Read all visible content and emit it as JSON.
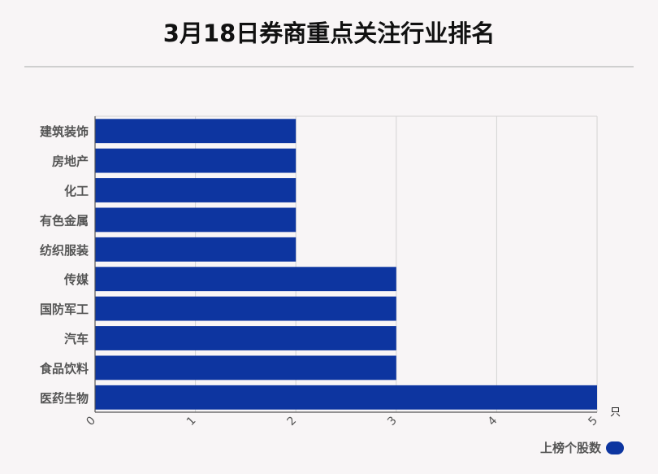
{
  "title": "3月18日券商重点关注行业排名",
  "colors": {
    "bar": "#0d35a0",
    "grid": "#d3d3d3",
    "background": "#f8f5f6"
  },
  "chart_data": {
    "type": "bar",
    "orientation": "horizontal",
    "categories": [
      "建筑装饰",
      "房地产",
      "化工",
      "有色金属",
      "纺织服装",
      "传媒",
      "国防军工",
      "汽车",
      "食品饮料",
      "医药生物"
    ],
    "series": [
      {
        "name": "上榜个股数",
        "values": [
          2,
          2,
          2,
          2,
          2,
          3,
          3,
          3,
          3,
          5
        ]
      }
    ],
    "xlim": [
      0,
      5
    ],
    "xticks": [
      "0",
      "1",
      "2",
      "3",
      "4",
      "5"
    ],
    "xunit": "只",
    "grid": true,
    "legend_position": "bottom-right"
  }
}
